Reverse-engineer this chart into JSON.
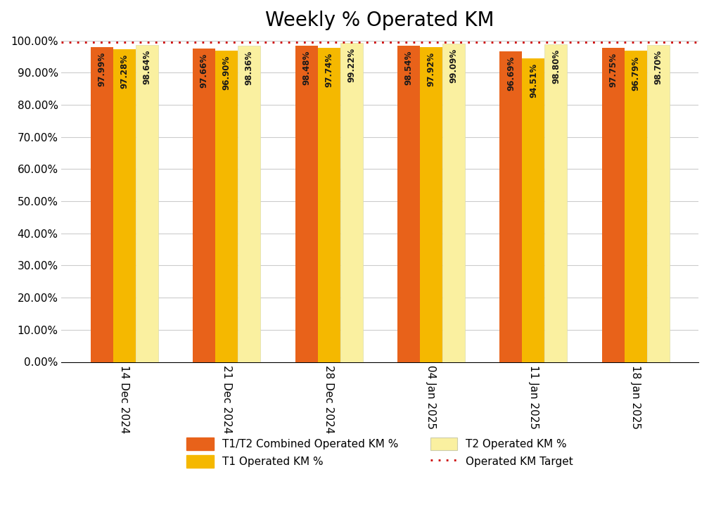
{
  "title": "Weekly % Operated KM",
  "categories": [
    "14 Dec 2024",
    "21 Dec 2024",
    "28 Dec 2024",
    "04 Jan 2025",
    "11 Jan 2025",
    "18 Jan 2025"
  ],
  "combined": [
    97.99,
    97.66,
    98.48,
    98.54,
    96.69,
    97.75
  ],
  "t1": [
    97.28,
    96.9,
    97.74,
    97.92,
    94.51,
    96.79
  ],
  "t2": [
    98.64,
    98.36,
    99.22,
    99.09,
    98.8,
    98.7
  ],
  "target": 99.5,
  "combined_color": "#E8621A",
  "t1_color": "#F5B800",
  "t2_color": "#FAF0A0",
  "target_color": "#CC0000",
  "bar_width": 0.22,
  "ylim": [
    0,
    100
  ],
  "yticks": [
    0,
    10,
    20,
    30,
    40,
    50,
    60,
    70,
    80,
    90,
    100
  ],
  "ytick_labels": [
    "0.00%",
    "10.00%",
    "20.00%",
    "30.00%",
    "40.00%",
    "50.00%",
    "60.00%",
    "70.00%",
    "80.00%",
    "90.00%",
    "100.00%"
  ],
  "legend_combined": "T1/T2 Combined Operated KM %",
  "legend_t1": "T1 Operated KM %",
  "legend_t2": "T2 Operated KM %",
  "legend_target": "Operated KM Target",
  "title_fontsize": 20,
  "label_fontsize": 8.5,
  "tick_fontsize": 11,
  "legend_fontsize": 11
}
